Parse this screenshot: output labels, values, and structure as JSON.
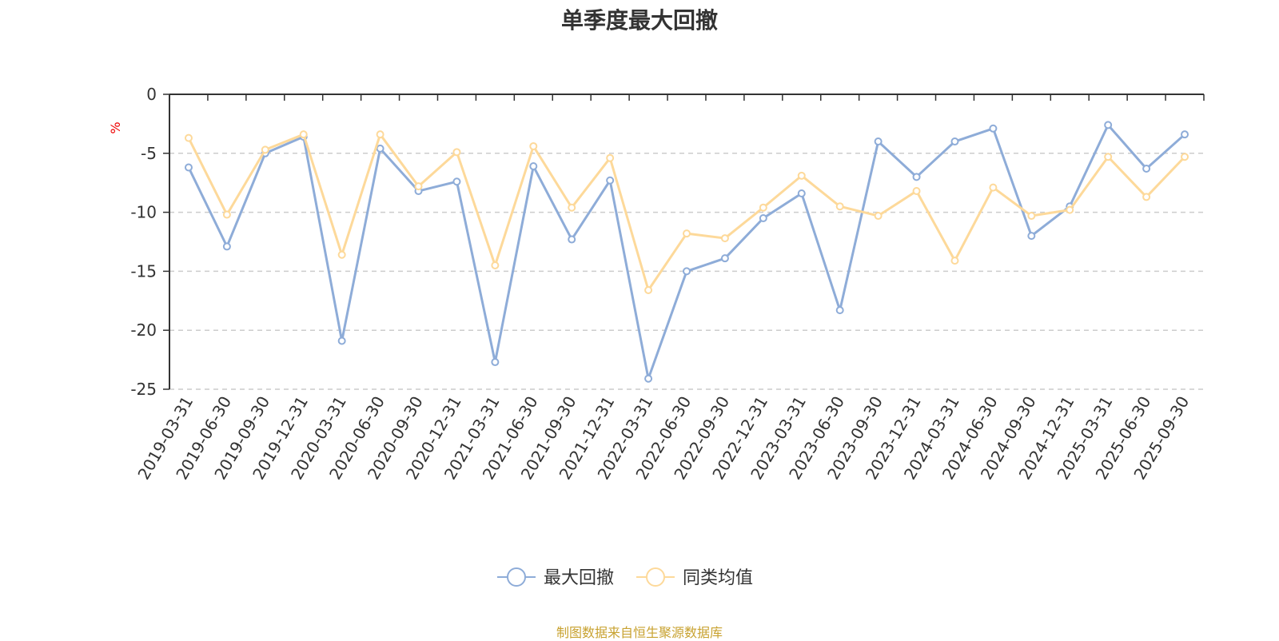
{
  "chart_data": {
    "type": "line",
    "title": "单季度最大回撤",
    "ylabel": "%",
    "ylim": [
      -25,
      0
    ],
    "yticks": [
      0,
      -5,
      -10,
      -15,
      -20,
      -25
    ],
    "grid": true,
    "legend_position": "bottom",
    "categories": [
      "2019-03-31",
      "2019-06-30",
      "2019-09-30",
      "2019-12-31",
      "2020-03-31",
      "2020-06-30",
      "2020-09-30",
      "2020-12-31",
      "2021-03-31",
      "2021-06-30",
      "2021-09-30",
      "2021-12-31",
      "2022-03-31",
      "2022-06-30",
      "2022-09-30",
      "2022-12-31",
      "2023-03-31",
      "2023-06-30",
      "2023-09-30",
      "2023-12-31",
      "2024-03-31",
      "2024-06-30",
      "2024-09-30",
      "2024-12-31",
      "2025-03-31",
      "2025-06-30",
      "2025-09-30"
    ],
    "series": [
      {
        "name": "最大回撤",
        "color": "#8eacd8",
        "values": [
          -6.2,
          -12.9,
          -5.0,
          -3.6,
          -20.9,
          -4.6,
          -8.2,
          -7.4,
          -22.7,
          -6.1,
          -12.3,
          -7.3,
          -24.1,
          -15.0,
          -13.9,
          -10.5,
          -8.4,
          -18.3,
          -4.0,
          -7.0,
          -4.0,
          -2.9,
          -12.0,
          -9.5,
          -2.6,
          -6.3,
          -3.4
        ]
      },
      {
        "name": "同类均值",
        "color": "#fdd99a",
        "values": [
          -3.7,
          -10.2,
          -4.7,
          -3.4,
          -13.6,
          -3.4,
          -7.8,
          -4.9,
          -14.5,
          -4.4,
          -9.6,
          -5.4,
          -16.6,
          -11.8,
          -12.2,
          -9.6,
          -6.9,
          -9.5,
          -10.3,
          -8.2,
          -14.1,
          -7.9,
          -10.3,
          -9.8,
          -5.3,
          -8.7,
          -5.3
        ]
      }
    ]
  },
  "footer": {
    "source": "制图数据来自恒生聚源数据库"
  }
}
